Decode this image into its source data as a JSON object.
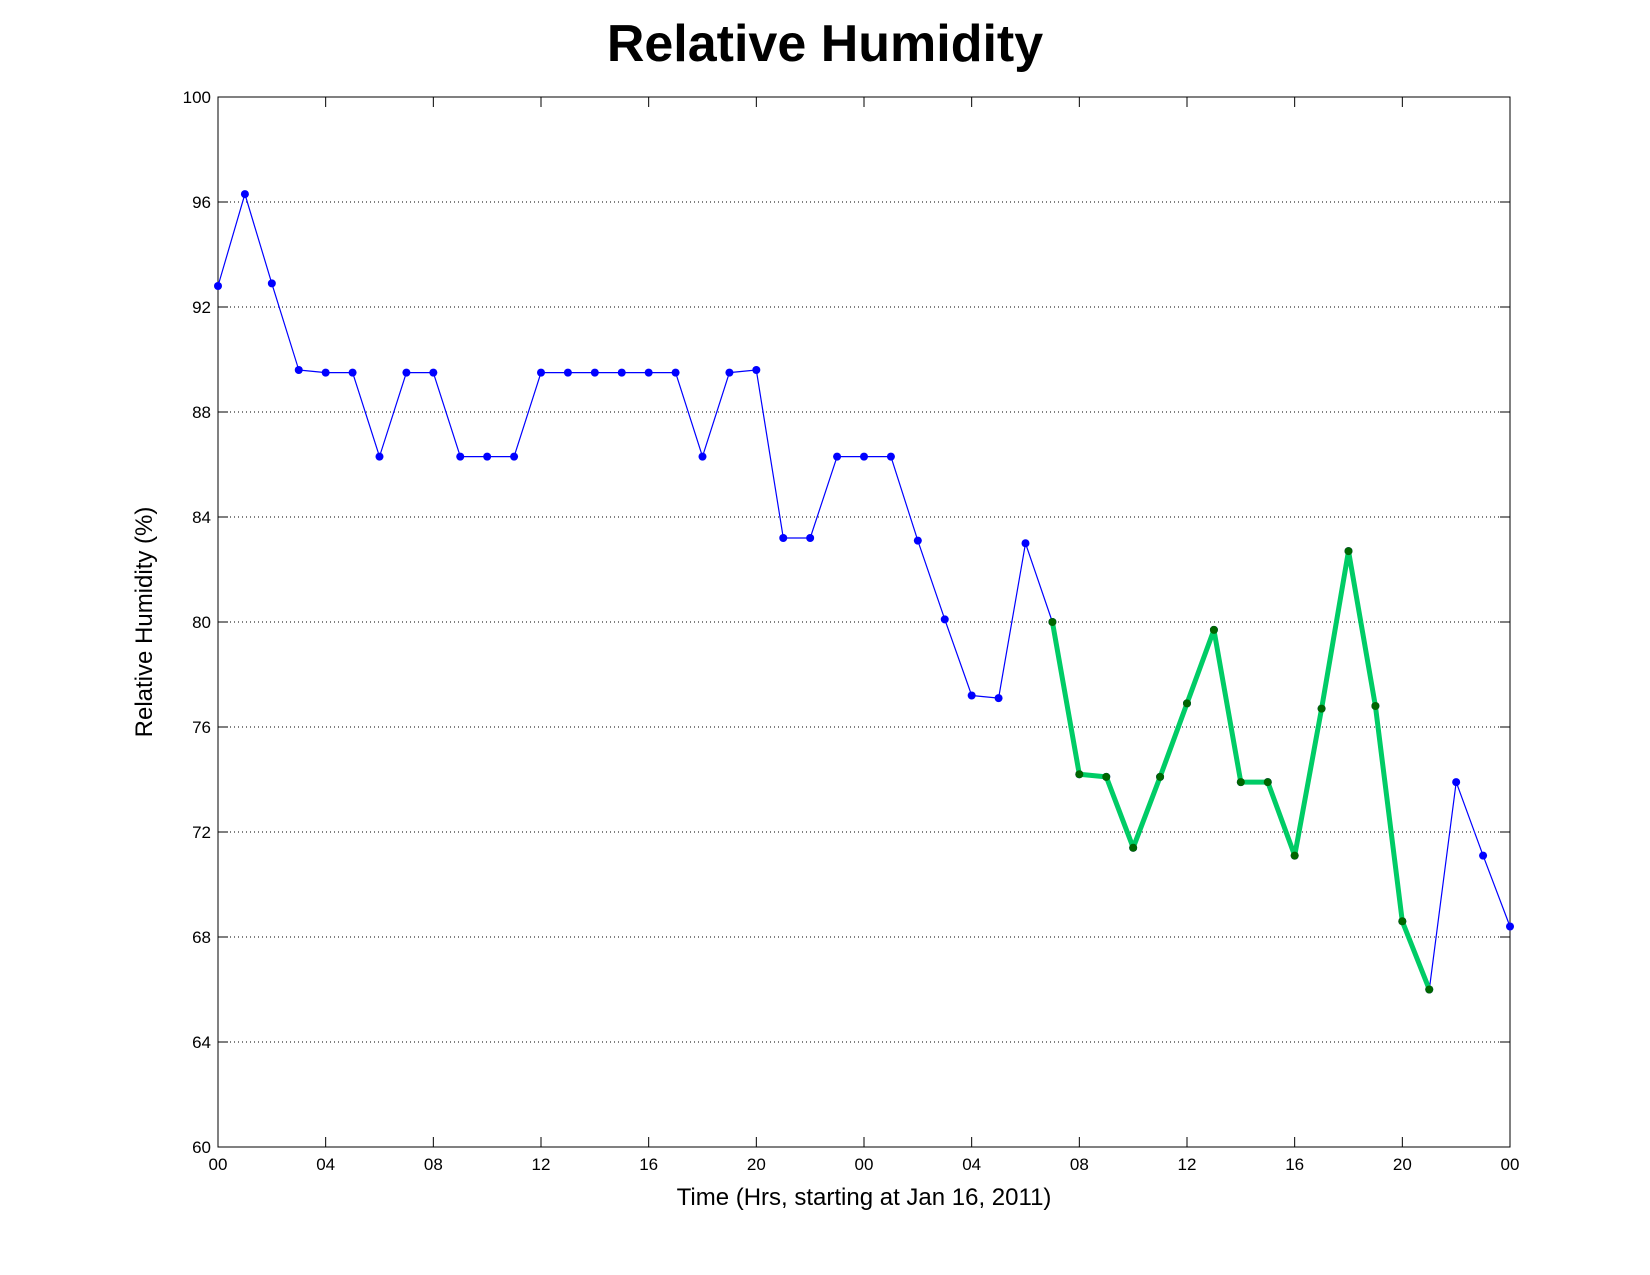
{
  "chart_data": {
    "type": "line",
    "title": "Relative Humidity",
    "xlabel": "Time (Hrs, starting at Jan 16, 2011)",
    "ylabel": "Relative Humidity (%)",
    "xlim": [
      0,
      48
    ],
    "ylim": [
      60,
      100
    ],
    "x_ticks": [
      0,
      4,
      8,
      12,
      16,
      20,
      24,
      28,
      32,
      36,
      40,
      44,
      48
    ],
    "x_tick_labels": [
      "00",
      "04",
      "08",
      "12",
      "16",
      "20",
      "00",
      "04",
      "08",
      "12",
      "16",
      "20",
      "00"
    ],
    "y_ticks": [
      60,
      64,
      68,
      72,
      76,
      80,
      84,
      88,
      92,
      96,
      100
    ],
    "y_tick_labels": [
      "60",
      "64",
      "68",
      "72",
      "76",
      "80",
      "84",
      "88",
      "92",
      "96",
      "100"
    ],
    "grid": "horizontal dotted",
    "series": [
      {
        "color": "#0000ff",
        "style": "thin line with dot markers",
        "x": [
          0,
          1,
          2,
          3,
          4,
          5,
          6,
          7,
          8,
          9,
          10,
          11,
          12,
          13,
          14,
          15,
          16,
          17,
          18,
          19,
          20,
          21,
          22,
          23,
          24,
          25,
          26,
          27,
          28,
          29,
          30,
          31,
          32,
          33,
          34,
          35,
          36,
          37,
          38,
          39,
          40,
          41,
          42,
          43,
          44,
          45,
          46,
          47,
          48
        ],
        "values": [
          92.8,
          96.3,
          92.9,
          89.6,
          89.5,
          89.5,
          86.3,
          89.5,
          89.5,
          86.3,
          86.3,
          86.3,
          89.5,
          89.5,
          89.5,
          89.5,
          89.5,
          89.5,
          86.3,
          89.5,
          89.6,
          83.2,
          83.2,
          86.3,
          86.3,
          86.3,
          83.1,
          80.1,
          77.2,
          77.1,
          83.0,
          80.0,
          74.2,
          74.1,
          71.4,
          74.1,
          76.9,
          79.7,
          73.9,
          73.9,
          71.1,
          76.7,
          82.7,
          76.8,
          68.6,
          66.0,
          73.9,
          71.1,
          68.4
        ]
      },
      {
        "color": "#00cc66",
        "marker_color": "#006600",
        "style": "thick line with dot markers",
        "x": [
          31,
          32,
          33,
          34,
          35,
          36,
          37,
          38,
          39,
          40,
          41,
          42,
          43,
          44,
          45
        ],
        "values": [
          80.0,
          74.2,
          74.1,
          71.4,
          74.1,
          76.9,
          79.7,
          73.9,
          73.9,
          71.1,
          76.7,
          82.7,
          76.8,
          68.6,
          66.0
        ]
      }
    ]
  }
}
